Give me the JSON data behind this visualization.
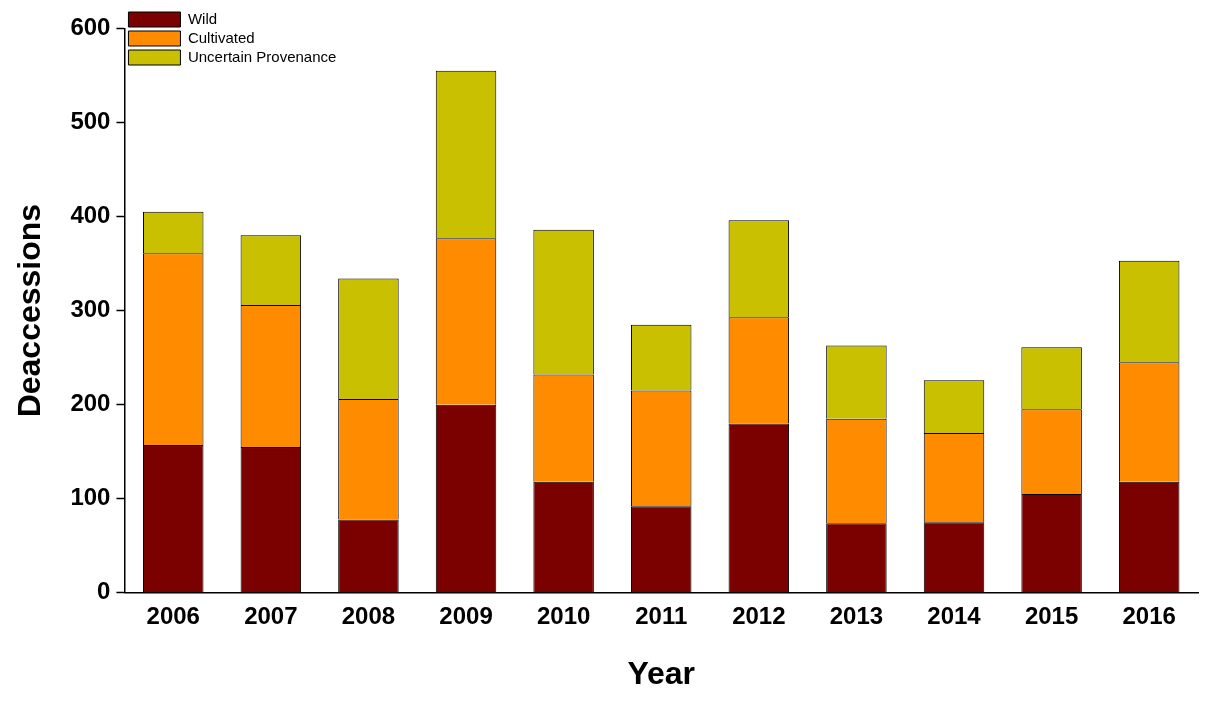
{
  "chart_data": {
    "type": "bar",
    "xlabel": "Year",
    "ylabel": "Deaccessions",
    "categories": [
      "2006",
      "2007",
      "2008",
      "2009",
      "2010",
      "2011",
      "2012",
      "2013",
      "2014",
      "2015",
      "2016"
    ],
    "series": [
      {
        "name": "Wild",
        "color": "#7b0000",
        "values": [
          157,
          155,
          78,
          200,
          118,
          92,
          180,
          74,
          75,
          105,
          118
        ]
      },
      {
        "name": "Cultivated",
        "color": "#ff8c00",
        "values": [
          204,
          151,
          128,
          177,
          114,
          123,
          113,
          111,
          95,
          90,
          127
        ]
      },
      {
        "name": "Uncertain Provenance",
        "color": "#c8c000",
        "values": [
          44,
          74,
          128,
          178,
          154,
          70,
          103,
          78,
          56,
          66,
          108
        ]
      }
    ],
    "stacked": true,
    "ylim": [
      0,
      600
    ],
    "yticks": [
      0,
      100,
      200,
      300,
      400,
      500,
      600
    ],
    "grid": false,
    "legend": "top"
  }
}
